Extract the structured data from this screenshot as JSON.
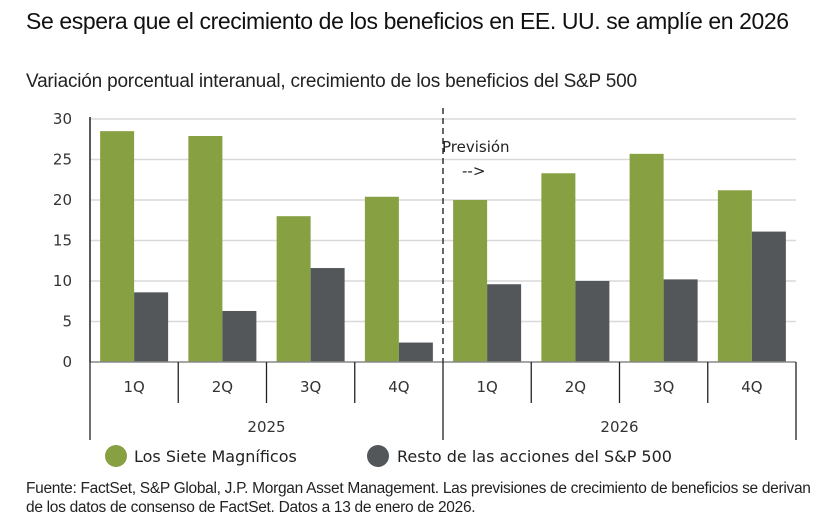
{
  "title": "Se espera que el crecimiento de los beneficios en EE. UU. se amplíe en 2026",
  "subtitle": "Variación porcentual interanual, crecimiento de los beneficios del S&P 500",
  "footnote": "Fuente: FactSet, S&P Global, J.P. Morgan Asset Management. Las previsiones de crecimiento de beneficios se derivan de los datos de consenso de FactSet. Datos a 13 de enero de 2026.",
  "colors": {
    "magnificent": "#86a042",
    "rest": "#53575a",
    "grid": "#d9d9d9",
    "axis": "#222222"
  },
  "chart_data": {
    "type": "bar",
    "title": "Se espera que el crecimiento de los beneficios en EE. UU. se amplíe en 2026",
    "subtitle": "Variación porcentual interanual, crecimiento de los beneficios del S&P 500",
    "xlabel": "",
    "ylabel": "",
    "ylim": [
      0,
      30
    ],
    "yticks": [
      0,
      5,
      10,
      15,
      20,
      25,
      30
    ],
    "grid": true,
    "categories": [
      "1Q",
      "2Q",
      "3Q",
      "4Q",
      "1Q",
      "2Q",
      "3Q",
      "4Q"
    ],
    "groups": [
      {
        "label": "2025",
        "start": 0,
        "end": 3
      },
      {
        "label": "2026",
        "start": 4,
        "end": 7
      }
    ],
    "series": [
      {
        "name": "Los Siete Magníficos",
        "color": "#86a042",
        "values": [
          28.5,
          27.9,
          18.0,
          20.4,
          20.0,
          23.3,
          25.7,
          21.2
        ]
      },
      {
        "name": "Resto de las acciones del S&P 500",
        "color": "#53575a",
        "values": [
          8.6,
          6.3,
          11.6,
          2.4,
          9.6,
          10.0,
          10.2,
          16.1
        ]
      }
    ],
    "annotations": [
      {
        "text": "Previsión",
        "arrow": "-->",
        "applies_from_index": 4
      }
    ],
    "forecast_divider_after_index": 3,
    "legend_position": "bottom"
  }
}
